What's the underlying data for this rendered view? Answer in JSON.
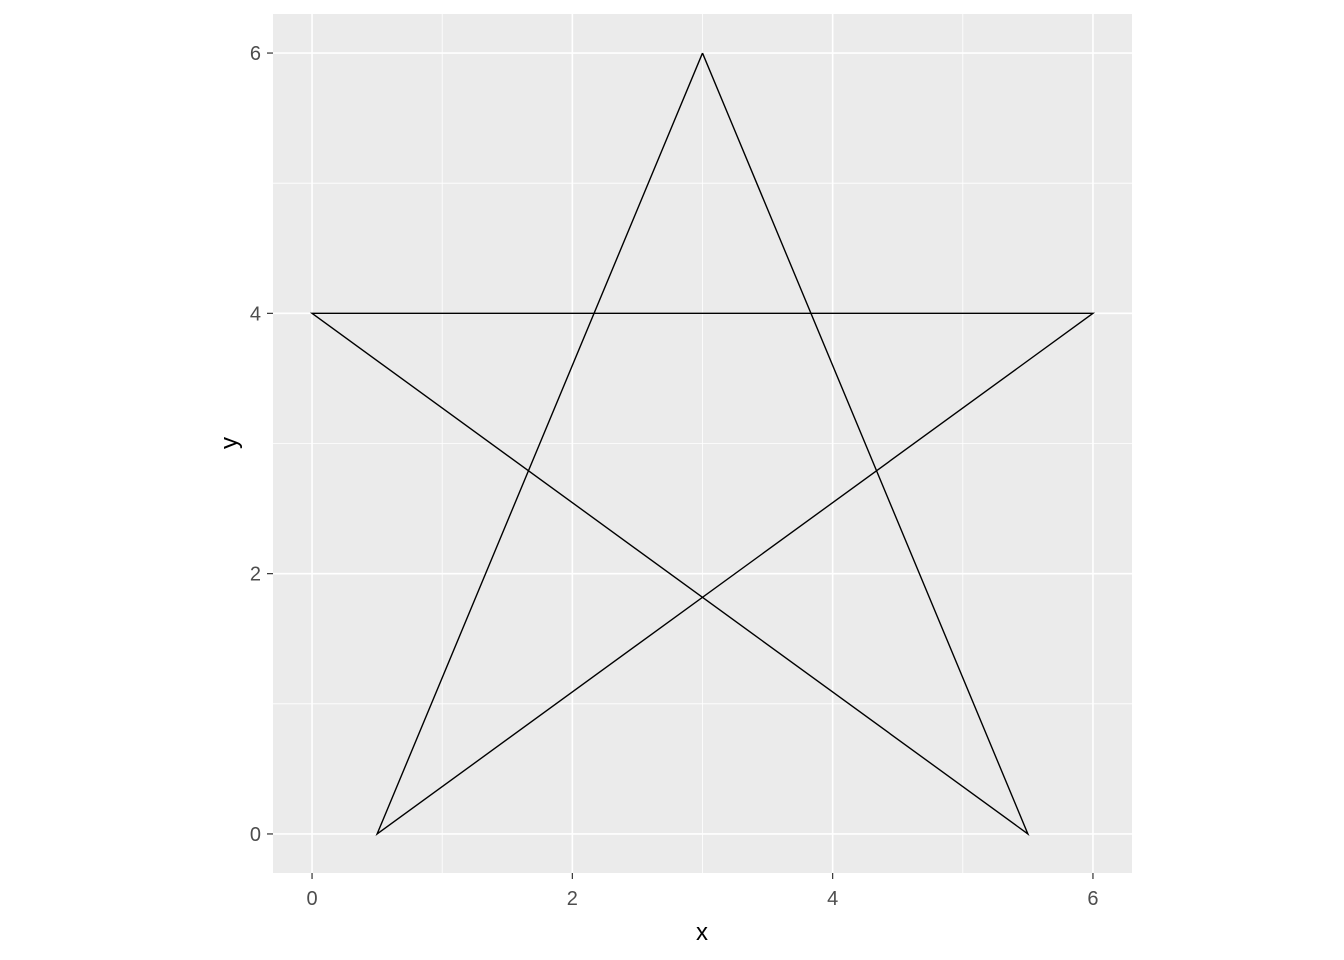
{
  "chart_data": {
    "type": "line",
    "title": "",
    "xlabel": "x",
    "ylabel": "y",
    "xlim": [
      -0.3,
      6.3
    ],
    "ylim": [
      -0.3,
      6.3
    ],
    "x_ticks": [
      0,
      2,
      4,
      6
    ],
    "y_ticks": [
      0,
      2,
      4,
      6
    ],
    "x_tick_labels": [
      "0",
      "2",
      "4",
      "6"
    ],
    "y_tick_labels": [
      "0",
      "2",
      "4",
      "6"
    ],
    "grid": true,
    "legend": "none",
    "series": [
      {
        "x": [
          3,
          5.5,
          0,
          6,
          0.5,
          3
        ],
        "y": [
          6,
          0,
          4,
          4,
          0,
          6
        ],
        "color": "#000000"
      }
    ]
  },
  "colors": {
    "panel_background": "#ebebeb",
    "grid_major": "#ffffff",
    "tick_text": "#4d4d4d",
    "axis_title": "#000000"
  }
}
